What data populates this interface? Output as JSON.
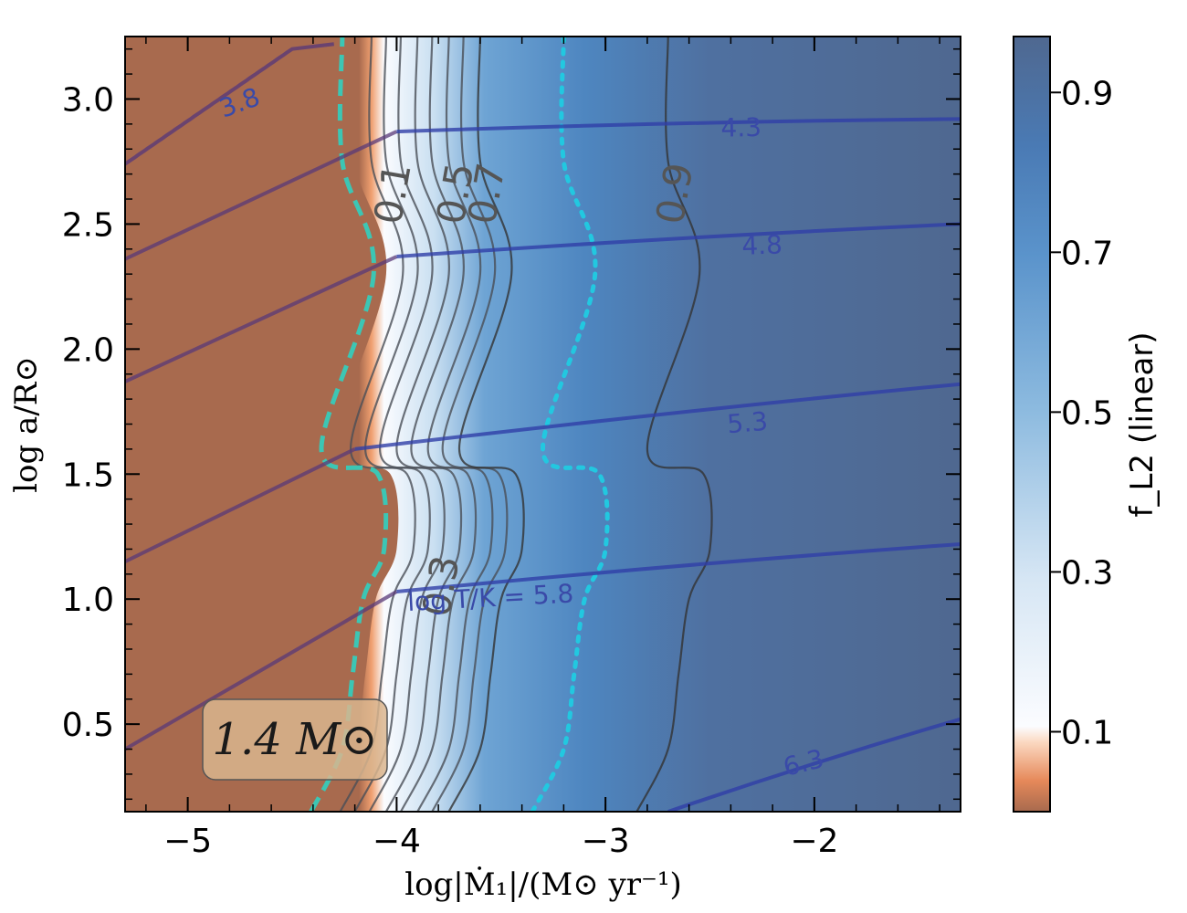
{
  "chart_data": {
    "type": "heatmap",
    "xlabel": "log|Ṁ₁|/(M⊙ yr⁻¹)",
    "ylabel": "log a/R⊙",
    "xlim": [
      -5.3,
      -1.3
    ],
    "ylim": [
      0.15,
      3.25
    ],
    "x_ticks": [
      -5,
      -4,
      -3,
      -2
    ],
    "x_tick_labels": [
      "−5",
      "−4",
      "−3",
      "−2"
    ],
    "y_ticks": [
      0.5,
      1.0,
      1.5,
      2.0,
      2.5,
      3.0
    ],
    "y_tick_labels": [
      "0.5",
      "1.0",
      "1.5",
      "2.0",
      "2.5",
      "3.0"
    ],
    "colorbar": {
      "label": "f_L2 (linear)",
      "range": [
        0.0,
        0.97
      ],
      "ticks": [
        0.1,
        0.3,
        0.5,
        0.7,
        0.9
      ],
      "tick_labels": [
        "0.1",
        "0.3",
        "0.5",
        "0.7",
        "0.9"
      ]
    },
    "annotation": "1.4 M⊙",
    "fL2_boundary_x": [
      -4.35,
      -4.2,
      -4.15,
      -4.1,
      -4.0,
      -4.03,
      -4.3,
      -4.05,
      -4.2,
      -4.2
    ],
    "fL2_boundary_y": [
      0.15,
      0.4,
      0.7,
      1.0,
      1.2,
      1.5,
      1.6,
      2.3,
      2.75,
      3.25
    ],
    "fL2_contours": [
      {
        "level": "0.1",
        "shift": 0.15
      },
      {
        "level": "0.3",
        "shift": 0.3
      },
      {
        "level": "0.5",
        "shift": 0.45
      },
      {
        "level": "0.7",
        "shift": 0.6
      },
      {
        "level": "0.9",
        "shift": 1.5
      }
    ],
    "cyan_dotted_shift": 1.0,
    "temperature_contours": [
      {
        "label": "3.8",
        "x": [
          -5.3,
          -4.5
        ],
        "y": [
          2.74,
          3.2
        ]
      },
      {
        "label": "4.3",
        "x": [
          -4.0,
          -1.3
        ],
        "y": [
          2.87,
          2.92
        ]
      },
      {
        "label": "4.8",
        "x": [
          -4.0,
          -1.3
        ],
        "y": [
          2.37,
          2.5
        ]
      },
      {
        "label": "5.3",
        "x": [
          -4.2,
          -1.3
        ],
        "y": [
          1.6,
          1.86
        ]
      },
      {
        "label": "log T/K = 5.8",
        "x": [
          -4.0,
          -1.3
        ],
        "y": [
          1.03,
          1.22
        ]
      },
      {
        "label": "6.3",
        "x": [
          -2.7,
          -1.3
        ],
        "y": [
          0.15,
          0.52
        ]
      }
    ],
    "lower_temperature_lines": [
      {
        "x": [
          -5.3,
          -4.0
        ],
        "y": [
          2.36,
          2.87
        ]
      },
      {
        "x": [
          -5.3,
          -4.0
        ],
        "y": [
          1.87,
          2.37
        ]
      },
      {
        "x": [
          -5.3,
          -4.2
        ],
        "y": [
          1.15,
          1.6
        ]
      },
      {
        "x": [
          -5.3,
          -4.0
        ],
        "y": [
          0.4,
          1.03
        ]
      }
    ]
  }
}
